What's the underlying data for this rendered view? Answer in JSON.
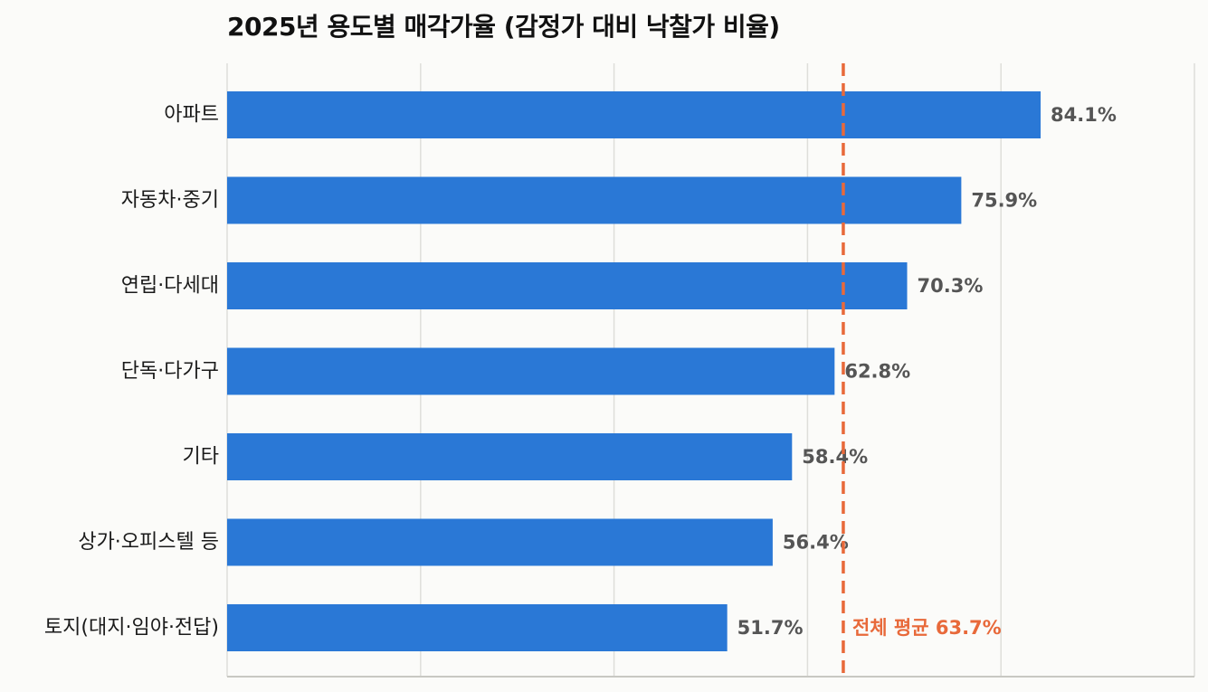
{
  "chart_data": {
    "type": "bar",
    "orientation": "horizontal",
    "title": "2025년 용도별 매각가율 (감정가 대비 낙찰가 비율)",
    "categories": [
      "아파트",
      "자동차·중기",
      "연립·다세대",
      "단독·다가구",
      "기타",
      "상가·오피스텔 등",
      "토지(대지·임야·전답)"
    ],
    "values": [
      84.1,
      75.9,
      70.3,
      62.8,
      58.4,
      56.4,
      51.7
    ],
    "value_labels": [
      "84.1%",
      "75.9%",
      "70.3%",
      "62.8%",
      "58.4%",
      "56.4%",
      "51.7%"
    ],
    "unit": "%",
    "xlim": [
      0,
      100
    ],
    "xlabel": "",
    "ylabel": "",
    "grid": true,
    "legend": false,
    "reference_line": {
      "value": 63.7,
      "label": "전체 평균 63.7%",
      "style": "dashed"
    },
    "colors": {
      "bar": "#2a78d6",
      "reference": "#e8693a",
      "grid": "#dededa",
      "axis": "#c8c8c3",
      "value_text": "#555555"
    }
  }
}
